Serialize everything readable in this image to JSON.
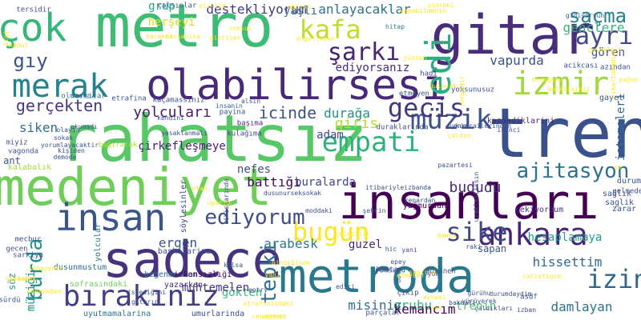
{
  "words": [
    {
      "text": "metro",
      "color": "#3fbc73"
    },
    {
      "text": "gitar",
      "color": "#472d7b"
    },
    {
      "text": "rahatsız",
      "color": "#58c765"
    },
    {
      "text": "tren",
      "color": "#3b518b"
    },
    {
      "text": "medeniyet",
      "color": "#6ece58"
    },
    {
      "text": "insanları",
      "color": "#440154"
    },
    {
      "text": "sadece",
      "color": "#46327e"
    },
    {
      "text": "metroda",
      "color": "#2a788e"
    },
    {
      "text": "olabilirsesi",
      "color": "#482878"
    },
    {
      "text": "insan",
      "color": "#39558c"
    },
    {
      "text": "çok",
      "color": "#35b779"
    },
    {
      "text": "merak",
      "color": "#25838e"
    },
    {
      "text": "izmir",
      "color": "#a0da39"
    },
    {
      "text": "ayrı",
      "color": "#3e4989"
    },
    {
      "text": "kafa",
      "color": "#bddf26"
    },
    {
      "text": "şarkı",
      "color": "#482475"
    },
    {
      "text": "edi",
      "color": "#29af7f"
    },
    {
      "text": "müzik",
      "color": "#3b528b"
    },
    {
      "text": "empati",
      "color": "#2db27d"
    },
    {
      "text": "gecis",
      "color": "#453882"
    },
    {
      "text": "ankara",
      "color": "#482677"
    },
    {
      "text": "sike",
      "color": "#3f4889"
    },
    {
      "text": "bugün",
      "color": "#fde725"
    },
    {
      "text": "izin",
      "color": "#31688e"
    },
    {
      "text": "bırakınız",
      "color": "#433e85"
    },
    {
      "text": "ediyorum",
      "color": "#3e4c8a"
    },
    {
      "text": "saçma",
      "color": "#277f8e"
    },
    {
      "text": "ajitasyon",
      "color": "#2c728e"
    },
    {
      "text": "gıy",
      "color": "#3b528b"
    },
    {
      "text": "tepki",
      "color": "#2e6e8e"
    },
    {
      "text": "burda",
      "color": "#21918c"
    },
    {
      "text": "gerçekten",
      "color": "#443983"
    },
    {
      "text": "yolcuları",
      "color": "#48186a"
    },
    {
      "text": "icinde",
      "color": "#3b528b"
    },
    {
      "text": "bududu",
      "color": "#472c7a"
    },
    {
      "text": "destekliyorum",
      "color": "#453781"
    },
    {
      "text": "anlayacaklar",
      "color": "#2c728e"
    },
    {
      "text": "ediyorsanız",
      "color": "#482979"
    },
    {
      "text": "yaşlı",
      "color": "#31688e"
    },
    {
      "text": "durağa",
      "color": "#21918c"
    },
    {
      "text": "giris",
      "color": "#b5de2b"
    },
    {
      "text": "vapurda",
      "color": "#3b528b"
    },
    {
      "text": "hesaplamaya",
      "color": "#1f9e89"
    },
    {
      "text": "hissettim",
      "color": "#31688e"
    },
    {
      "text": "damlayan",
      "color": "#2c728e"
    },
    {
      "text": "gökten",
      "color": "#35b779"
    },
    {
      "text": "muhtemelen",
      "color": "#453781"
    },
    {
      "text": "misiniz",
      "color": "#2c728e"
    },
    {
      "text": "grubu",
      "color": "#35b779"
    },
    {
      "text": "kemancım",
      "color": "#440154"
    },
    {
      "text": "trenin",
      "color": "#52c569"
    },
    {
      "text": "guzel",
      "color": "#482374"
    },
    {
      "text": "arabesk",
      "color": "#2a788e"
    },
    {
      "text": "ergen",
      "color": "#3a538b"
    },
    {
      "text": "nefes",
      "color": "#3e4c8a"
    },
    {
      "text": "battığı",
      "color": "#450559"
    },
    {
      "text": "buralarda",
      "color": "#414487"
    },
    {
      "text": "adam",
      "color": "#3e4989"
    },
    {
      "text": "çirkefleşmeye",
      "color": "#482173"
    },
    {
      "text": "siken",
      "color": "#2c728e"
    },
    {
      "text": "grup",
      "color": "#20a486"
    },
    {
      "text": "herşeyi",
      "color": "#d8e219"
    },
    {
      "text": "genclere",
      "color": "#31b57b"
    },
    {
      "text": "müziği",
      "color": "#21918c"
    },
    {
      "text": "söz",
      "color": "#1f9e89"
    },
    {
      "text": "ant",
      "color": "#3b528b"
    },
    {
      "text": "sapan",
      "color": "#3b528b"
    },
    {
      "text": "hitap",
      "color": "#26828e"
    },
    {
      "text": "istemeleri",
      "color": "#31688e"
    },
    {
      "text": "kazandiklarini",
      "color": "#482979"
    },
    {
      "text": "gören",
      "color": "#3b528b"
    },
    {
      "text": "yağmurdan",
      "color": "#440154"
    },
    {
      "text": "sofrasındaki",
      "color": "#6ece58"
    },
    {
      "text": "yazarken",
      "color": "#482878"
    },
    {
      "text": "uyutmamalarina",
      "color": "#2c728e"
    },
    {
      "text": "umurlarinda",
      "color": "#3e4c8a"
    },
    {
      "text": "kalabalık",
      "color": "#a0da39"
    },
    {
      "text": "başkalarina",
      "color": "#3b528b"
    },
    {
      "text": "beğenmessen",
      "color": "#31688e"
    },
    {
      "text": "imkansızlığı",
      "color": "#440154"
    },
    {
      "text": "dusunmustum",
      "color": "#2c728e"
    },
    {
      "text": "söylesinler",
      "color": "#3e4989"
    },
    {
      "text": "yolcular",
      "color": "#2c728e"
    },
    {
      "text": "kulağıma",
      "color": "#3e4c8a"
    },
    {
      "text": "başıma",
      "color": "#482878"
    },
    {
      "text": "payina",
      "color": "#3b528b"
    },
    {
      "text": "çekiyordum",
      "color": "#46327e"
    },
    {
      "text": "duraklarında",
      "color": "#3e4989"
    },
    {
      "text": "gayet",
      "color": "#3b528b"
    },
    {
      "text": "sağlık",
      "color": "#3e4c8a"
    },
    {
      "text": "durum",
      "color": "#3b528b"
    },
    {
      "text": "saglik",
      "color": "#3b528b"
    },
    {
      "text": "zarar",
      "color": "#3b528b"
    },
    {
      "text": "insanin",
      "color": "#31688e"
    },
    {
      "text": "alsin",
      "color": "#3b528b"
    },
    {
      "text": "gidiyorsun",
      "color": "#31688e"
    },
    {
      "text": "acikcası",
      "color": "#3b528b"
    },
    {
      "text": "azından",
      "color": "#3b528b"
    },
    {
      "text": "yoksunusuz",
      "color": "#3b528b"
    },
    {
      "text": "ikinci",
      "color": "#3e4c8a"
    },
    {
      "text": "hadi",
      "color": "#3b528b"
    },
    {
      "text": "etmeyen",
      "color": "#3b528b"
    },
    {
      "text": "kaçamassınız",
      "color": "#3b528b"
    },
    {
      "text": "sarkilar",
      "color": "#31688e"
    },
    {
      "text": "etrafina",
      "color": "#3b528b"
    },
    {
      "text": "olmasina",
      "color": "#2c728e"
    },
    {
      "text": "bağırarak",
      "color": "#b5de2b"
    },
    {
      "text": "miyiz",
      "color": "#3b528b"
    },
    {
      "text": "vagonda",
      "color": "#3b528b"
    },
    {
      "text": "tersidir",
      "color": "#3e4c8a"
    },
    {
      "text": "çalsınlar",
      "color": "#3b528b"
    },
    {
      "text": "yoksunu",
      "color": "#3b528b"
    },
    {
      "text": "görünen",
      "color": "#3b528b"
    },
    {
      "text": "çıkıp",
      "color": "#3e4c8a"
    },
    {
      "text": "hasta",
      "color": "#3e4c8a"
    },
    {
      "text": "parçalar",
      "color": "#3b528b"
    },
    {
      "text": "bakmali",
      "color": "#3b528b"
    },
    {
      "text": "yürüyerek",
      "color": "#3b528b"
    },
    {
      "text": "asdf",
      "color": "#3b528b"
    },
    {
      "text": "gelmeden",
      "color": "#3b528b"
    },
    {
      "text": "mecbur",
      "color": "#3b528b"
    },
    {
      "text": "gecen",
      "color": "#3e4c8a"
    },
    {
      "text": "sarkiya",
      "color": "#3b528b"
    },
    {
      "text": "sürdü",
      "color": "#3b528b"
    },
    {
      "text": "gürühu",
      "color": "#3b528b"
    },
    {
      "text": "durumdaydim",
      "color": "#3b528b"
    },
    {
      "text": "izban",
      "color": "#3b528b"
    },
    {
      "text": "çaldıkları",
      "color": "#3b528b"
    },
    {
      "text": "edici",
      "color": "#3b528b"
    },
    {
      "text": "dolu",
      "color": "#3b528b"
    },
    {
      "text": "yok",
      "color": "#3b528b"
    },
    {
      "text": "epey",
      "color": "#3b528b"
    },
    {
      "text": "hic",
      "color": "#3b528b"
    },
    {
      "text": "yani",
      "color": "#3b528b"
    },
    {
      "text": "raki",
      "color": "#3b528b"
    },
    {
      "text": "entry",
      "color": "#3b528b"
    },
    {
      "text": "kalsa",
      "color": "#3b528b"
    },
    {
      "text": "uzaklastirsın",
      "color": "#3b528b"
    },
    {
      "text": "pazartesi",
      "color": "#3b528b"
    },
    {
      "text": "moddaki",
      "color": "#3b528b"
    },
    {
      "text": "kenardan",
      "color": "#3b528b"
    },
    {
      "text": "itibariyleizbanda",
      "color": "#3b528b"
    },
    {
      "text": "şehrin",
      "color": "#3b528b"
    },
    {
      "text": "dusunurseksokak",
      "color": "#3b528b"
    },
    {
      "text": "istediğini",
      "color": "#3b528b"
    },
    {
      "text": "gitarın",
      "color": "#3b528b"
    },
    {
      "text": "kişiden",
      "color": "#3b528b"
    },
    {
      "text": "demode",
      "color": "#3b528b"
    },
    {
      "text": "olayın",
      "color": "#3b528b"
    },
    {
      "text": "sokak",
      "color": "#3b528b"
    },
    {
      "text": "yorumlayacaktir",
      "color": "#3b528b"
    },
    {
      "text": "okumadı",
      "color": "#3b528b"
    },
    {
      "text": "kendini",
      "color": "#3b528b"
    },
    {
      "text": "yasaklanmalı",
      "color": "#3b528b"
    },
    {
      "text": "cikislarinda",
      "color": "#3b528b"
    },
    {
      "text": "uykum",
      "color": "#3b528b"
    },
    {
      "text": "ankarailerinden",
      "color": "#3b528b"
    },
    {
      "text": "rengidir",
      "color": "#fde725"
    },
    {
      "text": "yüzden",
      "color": "#fde725"
    },
    {
      "text": "sonraki",
      "color": "#fde725"
    },
    {
      "text": "yapabilmenin",
      "color": "#fde725"
    },
    {
      "text": "ağrısı",
      "color": "#fde725"
    },
    {
      "text": "elinize",
      "color": "#fde725"
    },
    {
      "text": "gittiler",
      "color": "#fde725"
    },
    {
      "text": "sonsuz",
      "color": "#fde725"
    },
    {
      "text": "karşanıza",
      "color": "#fde725"
    },
    {
      "text": "hareket",
      "color": "#fde725"
    },
    {
      "text": "engelliyen",
      "color": "#fde725"
    },
    {
      "text": "olduğunu",
      "color": "#fde725"
    },
    {
      "text": "halklisiniz",
      "color": "#fde725"
    },
    {
      "text": "çalmaları",
      "color": "#fde725"
    },
    {
      "text": "yağan",
      "color": "#fde725"
    },
    {
      "text": "çıkartamadım",
      "color": "#fde725"
    },
    {
      "text": "çaldın",
      "color": "#fde725"
    },
    {
      "text": "ok",
      "color": "#fde725"
    },
    {
      "text": "ilgi",
      "color": "#fde725"
    },
    {
      "text": "kabul",
      "color": "#fde725"
    },
    {
      "text": "olan",
      "color": "#fde725"
    },
    {
      "text": "uyarip",
      "color": "#fde725"
    },
    {
      "text": "cenazeden",
      "color": "#fde725"
    },
    {
      "text": "cenazeniz",
      "color": "#fde725"
    },
    {
      "text": "saat",
      "color": "#fde725"
    },
    {
      "text": "söylemek",
      "color": "#fde725"
    },
    {
      "text": "bindiğinde",
      "color": "#fde725"
    },
    {
      "text": "damla",
      "color": "#fde725"
    },
    {
      "text": "bulacak",
      "color": "#fde725"
    },
    {
      "text": "calistigim",
      "color": "#fde725"
    },
    {
      "text": "etrafinizdaki",
      "color": "#fde725"
    },
    {
      "text": "cenazeniz",
      "color": "#fde725"
    },
    {
      "text": "yanı",
      "color": "#fde725"
    },
    {
      "text": "varken",
      "color": "#fde725"
    },
    {
      "text": "sanirim",
      "color": "#fde725"
    },
    {
      "text": "iki",
      "color": "#fde725"
    },
    {
      "text": "aynasi",
      "color": "#fde725"
    },
    {
      "text": "etmesen",
      "color": "#fde725"
    },
    {
      "text": "çalabilir",
      "color": "#fde725"
    }
  ]
}
